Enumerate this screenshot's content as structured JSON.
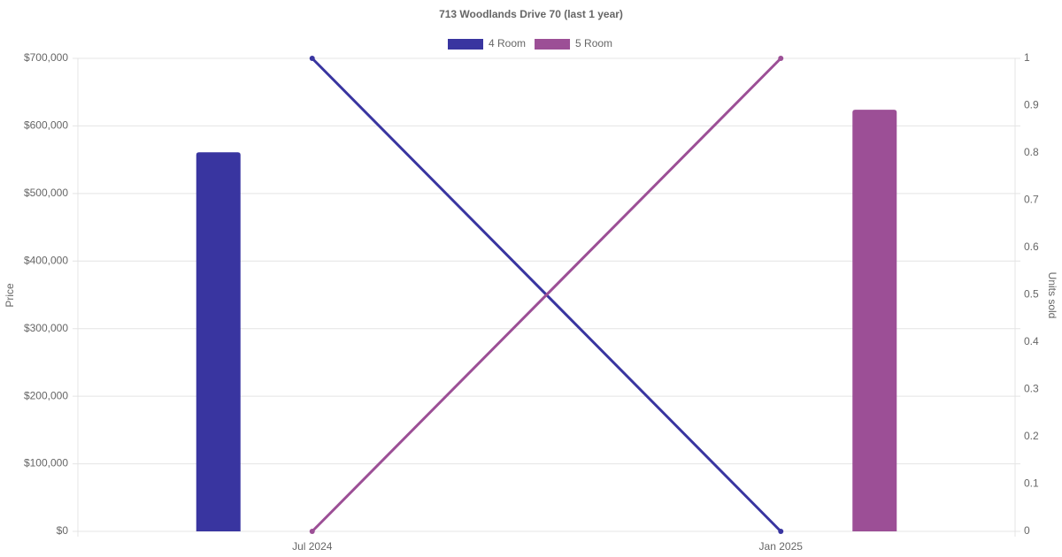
{
  "chart_data": {
    "type": "bar_line",
    "title": "713 Woodlands Drive 70 (last 1 year)",
    "categories": [
      "Jul 2024",
      "Jan 2025"
    ],
    "series": [
      {
        "name": "4 Room",
        "color": "#3935a0",
        "values": [
          561000,
          null
        ],
        "units_sold": [
          1,
          0
        ]
      },
      {
        "name": "5 Room",
        "color": "#9c4f96",
        "values": [
          null,
          624000
        ],
        "units_sold": [
          0,
          1
        ]
      }
    ],
    "y_label": "Price",
    "y2_label": "Units sold",
    "ylim": [
      0,
      700000
    ],
    "yticks": [
      {
        "value": 0,
        "label": "$0"
      },
      {
        "value": 100000,
        "label": "$100,000"
      },
      {
        "value": 200000,
        "label": "$200,000"
      },
      {
        "value": 300000,
        "label": "$300,000"
      },
      {
        "value": 400000,
        "label": "$400,000"
      },
      {
        "value": 500000,
        "label": "$500,000"
      },
      {
        "value": 600000,
        "label": "$600,000"
      },
      {
        "value": 700000,
        "label": "$700,000"
      }
    ],
    "y2lim": [
      0,
      1
    ],
    "y2ticks": [
      0,
      0.1,
      0.2,
      0.3,
      0.4,
      0.5,
      0.6,
      0.7,
      0.8,
      0.9,
      1
    ],
    "grid": true
  }
}
